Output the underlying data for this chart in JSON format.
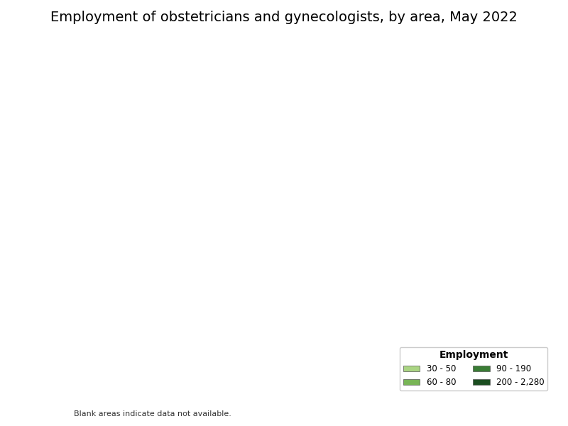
{
  "title": "Employment of obstetricians and gynecologists, by area, May 2022",
  "title_fontsize": 14,
  "legend_title": "Employment",
  "legend_title_fontsize": 10,
  "legend_labels": [
    "30 - 50",
    "60 - 80",
    "90 - 190",
    "200 - 2,280"
  ],
  "legend_colors": [
    "#aad583",
    "#78b556",
    "#3a7d35",
    "#1a4d20"
  ],
  "blank_note": "Blank areas indicate data not available.",
  "background_color": "#ffffff",
  "boundary_color": "#000000",
  "boundary_linewidth": 0.3,
  "no_data_color": "#ffffff",
  "map_facecolor": "#ffffff"
}
